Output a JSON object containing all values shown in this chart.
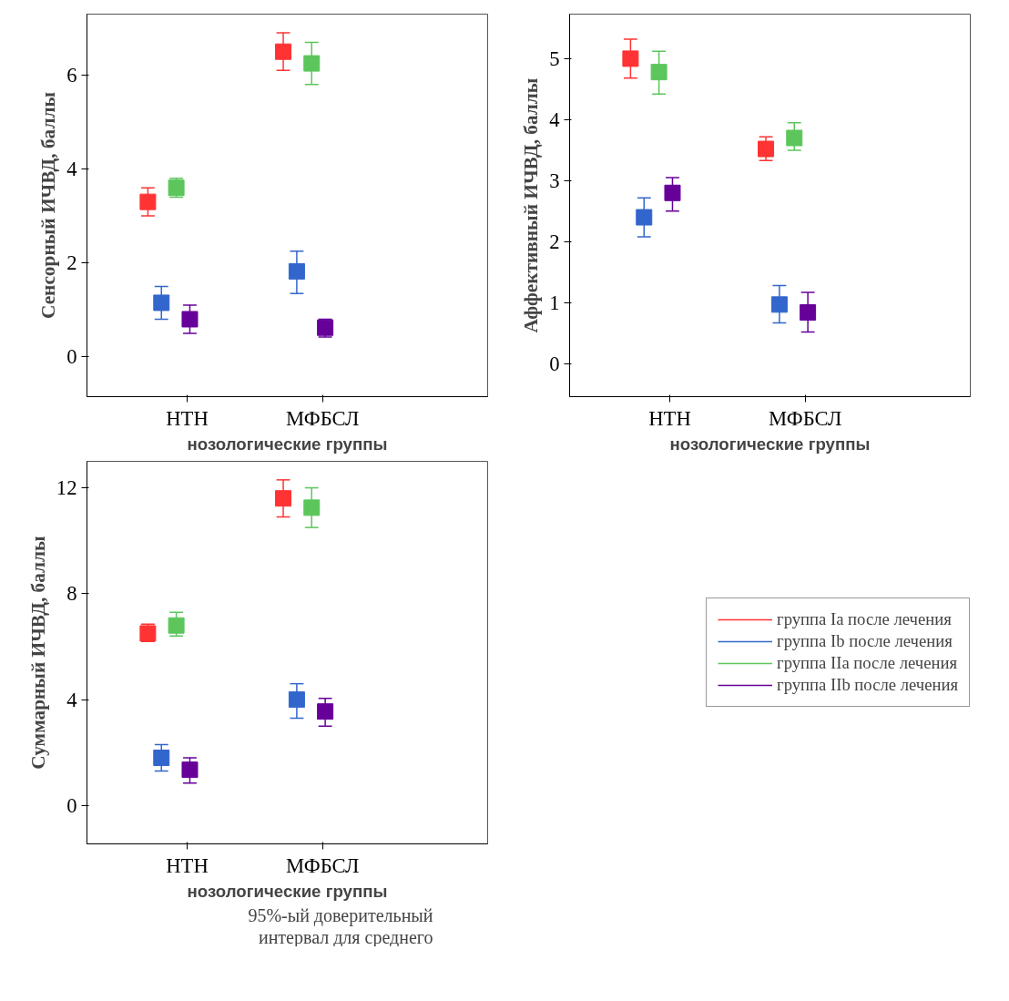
{
  "chart_data": [
    {
      "type": "scatter",
      "categories": [
        "НТН",
        "МФБСЛ"
      ],
      "xlabel": "нозологические группы",
      "ylabel": "Сенсорный ИЧВД, баллы",
      "ylim": [
        -0.85,
        7.3
      ],
      "yticks": [
        0,
        2,
        4,
        6
      ],
      "marker": "square",
      "grid": false,
      "series": [
        {
          "color": "#ff3333",
          "values": [
            3.3,
            6.5
          ],
          "errors": [
            [
              3.0,
              3.6
            ],
            [
              6.1,
              6.9
            ]
          ]
        },
        {
          "color": "#3366cc",
          "values": [
            1.15,
            1.82
          ],
          "errors": [
            [
              0.8,
              1.5
            ],
            [
              1.35,
              2.25
            ]
          ]
        },
        {
          "color": "#5cc65c",
          "values": [
            3.6,
            6.25
          ],
          "errors": [
            [
              3.4,
              3.8
            ],
            [
              5.8,
              6.7
            ]
          ]
        },
        {
          "color": "#660099",
          "values": [
            0.8,
            0.62
          ],
          "errors": [
            [
              0.5,
              1.1
            ],
            [
              0.42,
              0.8
            ]
          ]
        }
      ]
    },
    {
      "type": "scatter",
      "categories": [
        "НТН",
        "МФБСЛ"
      ],
      "xlabel": "нозологические группы",
      "ylabel": "Аффективный ИЧВД, баллы",
      "ylim": [
        -0.54,
        5.73
      ],
      "yticks": [
        0,
        1,
        2,
        3,
        4,
        5
      ],
      "marker": "square",
      "grid": false,
      "series": [
        {
          "color": "#ff3333",
          "values": [
            5.0,
            3.52
          ],
          "errors": [
            [
              4.68,
              5.32
            ],
            [
              3.33,
              3.72
            ]
          ]
        },
        {
          "color": "#3366cc",
          "values": [
            2.4,
            0.97
          ],
          "errors": [
            [
              2.08,
              2.72
            ],
            [
              0.67,
              1.28
            ]
          ]
        },
        {
          "color": "#5cc65c",
          "values": [
            4.78,
            3.7
          ],
          "errors": [
            [
              4.42,
              5.12
            ],
            [
              3.5,
              3.95
            ]
          ]
        },
        {
          "color": "#660099",
          "values": [
            2.8,
            0.84
          ],
          "errors": [
            [
              2.5,
              3.05
            ],
            [
              0.52,
              1.17
            ]
          ]
        }
      ]
    },
    {
      "type": "scatter",
      "categories": [
        "НТН",
        "МФБСЛ"
      ],
      "xlabel": "нозологические группы",
      "ylabel": "Суммарный ИЧВД, баллы",
      "ylim": [
        -1.45,
        13.0
      ],
      "yticks": [
        0,
        4,
        8,
        12
      ],
      "marker": "square",
      "grid": false,
      "legend": "right",
      "annotations": [
        "95%-ый доверительный интервал для среднего"
      ],
      "series": [
        {
          "name": "группа Ia после лечения",
          "color": "#ff3333",
          "values": [
            6.5,
            11.6
          ],
          "errors": [
            [
              6.2,
              6.85
            ],
            [
              10.9,
              12.3
            ]
          ]
        },
        {
          "name": "группа Ib после лечения",
          "color": "#3366cc",
          "values": [
            1.8,
            4.0
          ],
          "errors": [
            [
              1.3,
              2.3
            ],
            [
              3.3,
              4.6
            ]
          ]
        },
        {
          "name": "группа IIa после лечения",
          "color": "#5cc65c",
          "values": [
            6.8,
            11.25
          ],
          "errors": [
            [
              6.4,
              7.3
            ],
            [
              10.5,
              12.0
            ]
          ]
        },
        {
          "name": "группа IIb после лечения",
          "color": "#660099",
          "values": [
            1.35,
            3.55
          ],
          "errors": [
            [
              0.85,
              1.8
            ],
            [
              3.0,
              4.05
            ]
          ]
        }
      ]
    }
  ]
}
